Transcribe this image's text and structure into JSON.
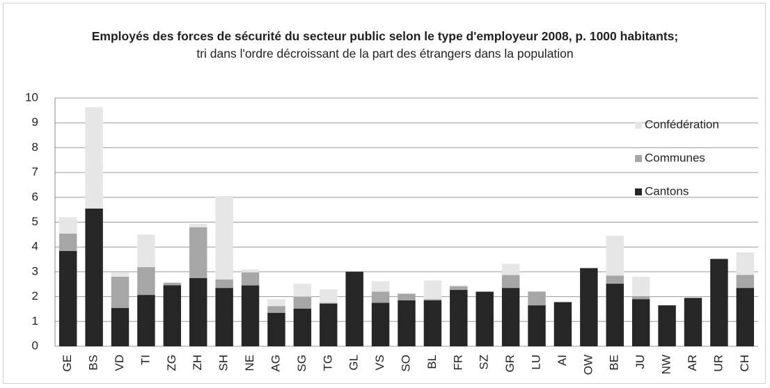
{
  "chart_data": {
    "type": "stacked_bar",
    "title": "Employés des forces de sécurité du secteur public selon le type d'employeur 2008, p. 1000 habitants;",
    "subtitle": "tri dans l'ordre décroissant de la part des étrangers dans la population",
    "categories": [
      "GE",
      "BS",
      "VD",
      "TI",
      "ZG",
      "ZH",
      "SH",
      "NE",
      "AG",
      "SG",
      "TG",
      "GL",
      "VS",
      "SO",
      "BL",
      "FR",
      "SZ",
      "GR",
      "LU",
      "AI",
      "OW",
      "BE",
      "JU",
      "NW",
      "AR",
      "UR",
      "CH"
    ],
    "series": [
      {
        "name": "Cantons",
        "color": "#262626",
        "values": [
          3.84,
          5.55,
          1.54,
          2.07,
          2.46,
          2.75,
          2.35,
          2.45,
          1.35,
          1.52,
          1.72,
          3.0,
          1.75,
          1.85,
          1.85,
          2.27,
          2.2,
          2.35,
          1.65,
          1.78,
          3.15,
          2.52,
          1.9,
          1.65,
          1.95,
          3.52,
          2.35
        ]
      },
      {
        "name": "Communes",
        "color": "#a6a6a6",
        "values": [
          0.7,
          0,
          1.26,
          1.12,
          0.1,
          2.04,
          0.34,
          0.53,
          0.27,
          0.48,
          0.03,
          0.03,
          0.45,
          0.27,
          0.05,
          0.15,
          0,
          0.52,
          0.55,
          0,
          0,
          0.33,
          0.12,
          0,
          0,
          0,
          0.53
        ]
      },
      {
        "name": "Confédération",
        "color": "#e6e6e6",
        "values": [
          0.66,
          4.08,
          0.17,
          1.31,
          0,
          0.14,
          3.36,
          0.12,
          0.28,
          0.52,
          0.55,
          0,
          0.42,
          0,
          0.75,
          0.03,
          0,
          0.45,
          0.03,
          0,
          0,
          1.6,
          0.78,
          0,
          0,
          0,
          0.9
        ]
      }
    ],
    "ylim": [
      0,
      10
    ],
    "yticks": [
      0,
      1,
      2,
      3,
      4,
      5,
      6,
      7,
      8,
      9,
      10
    ],
    "grid": true,
    "legend": "right"
  }
}
